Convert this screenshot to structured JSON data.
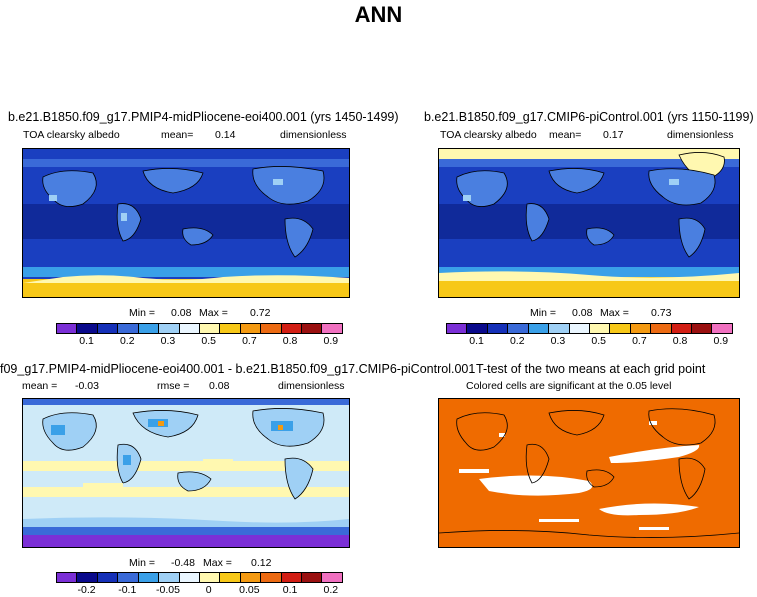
{
  "title": "ANN",
  "panels": {
    "p1": {
      "title": "b.e21.B1850.f09_g17.PMIP4-midPliocene-eoi400.001 (yrs 1450-1499)",
      "variable": "TOA clearsky albedo",
      "mean_label": "mean=",
      "mean_value": "0.14",
      "units": "dimensionless",
      "min_label": "Min =",
      "min_value": "0.08",
      "max_label": "Max =",
      "max_value": "0.72"
    },
    "p2": {
      "title": "b.e21.B1850.f09_g17.CMIP6-piControl.001 (yrs 1150-1199)",
      "variable": "TOA clearsky albedo",
      "mean_label": "mean=",
      "mean_value": "0.17",
      "units": "dimensionless",
      "min_label": "Min =",
      "min_value": "0.08",
      "max_label": "Max =",
      "max_value": "0.73"
    },
    "p3": {
      "title": "f09_g17.PMIP4-midPliocene-eoi400.001 - b.e21.B1850.f09_g17.CMIP6-piControl.001",
      "mean_label": "mean =",
      "mean_value": "-0.03",
      "rmse_label": "rmse =",
      "rmse_value": "0.08",
      "units": "dimensionless",
      "min_label": "Min =",
      "min_value": "-0.48",
      "max_label": "Max =",
      "max_value": "0.12"
    },
    "p4": {
      "title": "T-test of the two means at each grid point",
      "subtitle": "Colored cells are significant at the 0.05 level"
    }
  },
  "colorbar_top": {
    "colors": [
      "#7b2fd6",
      "#0a0a8c",
      "#1530b8",
      "#3a6ad8",
      "#3aa0e8",
      "#9fd0f5",
      "#eaf6ff",
      "#fff8b0",
      "#f7c818",
      "#f49a12",
      "#ec6a12",
      "#d21e14",
      "#9a1010",
      "#f070c0"
    ],
    "labels": [
      "0.1",
      "0.2",
      "0.3",
      "0.5",
      "0.7",
      "0.8",
      "0.9"
    ]
  },
  "colorbar_diff": {
    "colors": [
      "#7b2fd6",
      "#0a0a8c",
      "#1530b8",
      "#3a6ad8",
      "#3aa0e8",
      "#9fd0f5",
      "#eaf6ff",
      "#fff8b0",
      "#f7c818",
      "#f49a12",
      "#ec6a12",
      "#d21e14",
      "#9a1010",
      "#f070c0"
    ],
    "labels": [
      "-0.2",
      "-0.1",
      "-0.05",
      "0",
      "0.05",
      "0.1",
      "0.2"
    ]
  },
  "colors": {
    "ocean_base": "#1a3fc0",
    "ocean_tropics": "#102a9a",
    "land_blue": "#4a7fe0",
    "ice": "#f7c818",
    "ice_light": "#fff8b0",
    "diff_base": "#cfeaf8",
    "ttest_fill": "#ef6b00"
  }
}
